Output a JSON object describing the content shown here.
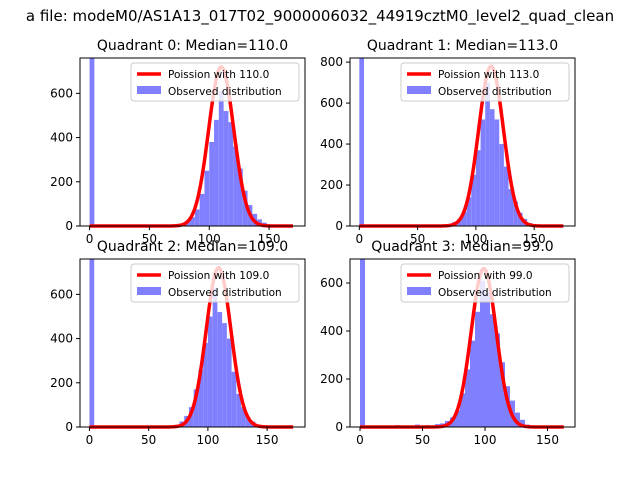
{
  "figure": {
    "suptitle": "a file: modeM0/AS1A13_017T02_9000006032_44919cztM0_level2_quad_clean"
  },
  "colors": {
    "hist_fill": "#8080ff",
    "poisson_line": "#ff0000",
    "axis": "#000000",
    "background": "#ffffff"
  },
  "chart_data": [
    {
      "type": "bar",
      "title": "Quadrant 0: Median=110.0",
      "xlim": [
        -8,
        180
      ],
      "ylim": [
        0,
        760
      ],
      "xticks": [
        0,
        50,
        100,
        150
      ],
      "yticks": [
        0,
        200,
        400,
        600
      ],
      "bin_width": 4,
      "legend": "upper-right",
      "series": [
        {
          "name": "Poission with 110.0",
          "kind": "line",
          "mean": 110.0,
          "peak": 720,
          "sigma": 10.5,
          "x_range": [
            0,
            170
          ]
        },
        {
          "name": "Observed distribution",
          "kind": "histogram",
          "bins": [
            {
              "x": 0,
              "value": 760
            },
            {
              "x": 76,
              "value": 10
            },
            {
              "x": 80,
              "value": 25
            },
            {
              "x": 84,
              "value": 40
            },
            {
              "x": 88,
              "value": 75
            },
            {
              "x": 92,
              "value": 145
            },
            {
              "x": 96,
              "value": 250
            },
            {
              "x": 100,
              "value": 380
            },
            {
              "x": 104,
              "value": 480
            },
            {
              "x": 108,
              "value": 610
            },
            {
              "x": 112,
              "value": 520
            },
            {
              "x": 116,
              "value": 470
            },
            {
              "x": 120,
              "value": 360
            },
            {
              "x": 124,
              "value": 260
            },
            {
              "x": 128,
              "value": 160
            },
            {
              "x": 132,
              "value": 95
            },
            {
              "x": 136,
              "value": 55
            },
            {
              "x": 140,
              "value": 30
            },
            {
              "x": 144,
              "value": 15
            },
            {
              "x": 148,
              "value": 5
            }
          ]
        }
      ]
    },
    {
      "type": "bar",
      "title": "Quadrant 1: Median=113.0",
      "xlim": [
        -8,
        185
      ],
      "ylim": [
        0,
        820
      ],
      "xticks": [
        0,
        50,
        100,
        150
      ],
      "yticks": [
        0,
        200,
        400,
        600,
        800
      ],
      "bin_width": 4,
      "legend": "upper-right",
      "series": [
        {
          "name": "Poission with 113.0",
          "kind": "line",
          "mean": 113.0,
          "peak": 780,
          "sigma": 10.6,
          "x_range": [
            0,
            175
          ]
        },
        {
          "name": "Observed distribution",
          "kind": "histogram",
          "bins": [
            {
              "x": 0,
              "value": 820
            },
            {
              "x": 76,
              "value": 10
            },
            {
              "x": 80,
              "value": 20
            },
            {
              "x": 84,
              "value": 35
            },
            {
              "x": 88,
              "value": 70
            },
            {
              "x": 92,
              "value": 140
            },
            {
              "x": 96,
              "value": 250
            },
            {
              "x": 100,
              "value": 370
            },
            {
              "x": 104,
              "value": 520
            },
            {
              "x": 108,
              "value": 700
            },
            {
              "x": 112,
              "value": 570
            },
            {
              "x": 116,
              "value": 520
            },
            {
              "x": 120,
              "value": 400
            },
            {
              "x": 124,
              "value": 290
            },
            {
              "x": 128,
              "value": 180
            },
            {
              "x": 132,
              "value": 120
            },
            {
              "x": 136,
              "value": 65
            },
            {
              "x": 140,
              "value": 35
            },
            {
              "x": 144,
              "value": 15
            },
            {
              "x": 148,
              "value": 5
            }
          ]
        }
      ]
    },
    {
      "type": "bar",
      "title": "Quadrant 2: Median=109.0",
      "xlim": [
        -8,
        182
      ],
      "ylim": [
        0,
        760
      ],
      "xticks": [
        0,
        50,
        100,
        150
      ],
      "yticks": [
        0,
        200,
        400,
        600
      ],
      "bin_width": 4,
      "legend": "upper-right",
      "series": [
        {
          "name": "Poission with 109.0",
          "kind": "line",
          "mean": 109.0,
          "peak": 720,
          "sigma": 10.5,
          "x_range": [
            0,
            172
          ]
        },
        {
          "name": "Observed distribution",
          "kind": "histogram",
          "bins": [
            {
              "x": 0,
              "value": 760
            },
            {
              "x": 72,
              "value": 10
            },
            {
              "x": 76,
              "value": 25
            },
            {
              "x": 80,
              "value": 50
            },
            {
              "x": 84,
              "value": 90
            },
            {
              "x": 88,
              "value": 170
            },
            {
              "x": 92,
              "value": 260
            },
            {
              "x": 96,
              "value": 380
            },
            {
              "x": 100,
              "value": 500
            },
            {
              "x": 104,
              "value": 630
            },
            {
              "x": 108,
              "value": 520
            },
            {
              "x": 112,
              "value": 470
            },
            {
              "x": 116,
              "value": 400
            },
            {
              "x": 120,
              "value": 250
            },
            {
              "x": 124,
              "value": 150
            },
            {
              "x": 128,
              "value": 90
            },
            {
              "x": 132,
              "value": 45
            },
            {
              "x": 136,
              "value": 25
            },
            {
              "x": 140,
              "value": 10
            },
            {
              "x": 144,
              "value": 5
            }
          ]
        }
      ]
    },
    {
      "type": "bar",
      "title": "Quadrant 3: Median=99.0",
      "xlim": [
        -8,
        172
      ],
      "ylim": [
        0,
        700
      ],
      "xticks": [
        0,
        50,
        100,
        150
      ],
      "yticks": [
        0,
        200,
        400,
        600
      ],
      "bin_width": 4,
      "legend": "upper-right",
      "series": [
        {
          "name": "Poission with 99.0",
          "kind": "line",
          "mean": 99.0,
          "peak": 660,
          "sigma": 10.0,
          "x_range": [
            0,
            163
          ]
        },
        {
          "name": "Observed distribution",
          "kind": "histogram",
          "bins": [
            {
              "x": 0,
              "value": 700
            },
            {
              "x": 20,
              "value": 5
            },
            {
              "x": 28,
              "value": 8
            },
            {
              "x": 36,
              "value": 6
            },
            {
              "x": 44,
              "value": 10
            },
            {
              "x": 52,
              "value": 8
            },
            {
              "x": 60,
              "value": 12
            },
            {
              "x": 64,
              "value": 15
            },
            {
              "x": 68,
              "value": 25
            },
            {
              "x": 72,
              "value": 40
            },
            {
              "x": 76,
              "value": 70
            },
            {
              "x": 80,
              "value": 140
            },
            {
              "x": 84,
              "value": 240
            },
            {
              "x": 88,
              "value": 360
            },
            {
              "x": 92,
              "value": 480
            },
            {
              "x": 96,
              "value": 610
            },
            {
              "x": 100,
              "value": 560
            },
            {
              "x": 104,
              "value": 470
            },
            {
              "x": 108,
              "value": 390
            },
            {
              "x": 112,
              "value": 270
            },
            {
              "x": 116,
              "value": 170
            },
            {
              "x": 120,
              "value": 110
            },
            {
              "x": 124,
              "value": 60
            },
            {
              "x": 128,
              "value": 30
            },
            {
              "x": 132,
              "value": 10
            }
          ]
        }
      ]
    }
  ]
}
